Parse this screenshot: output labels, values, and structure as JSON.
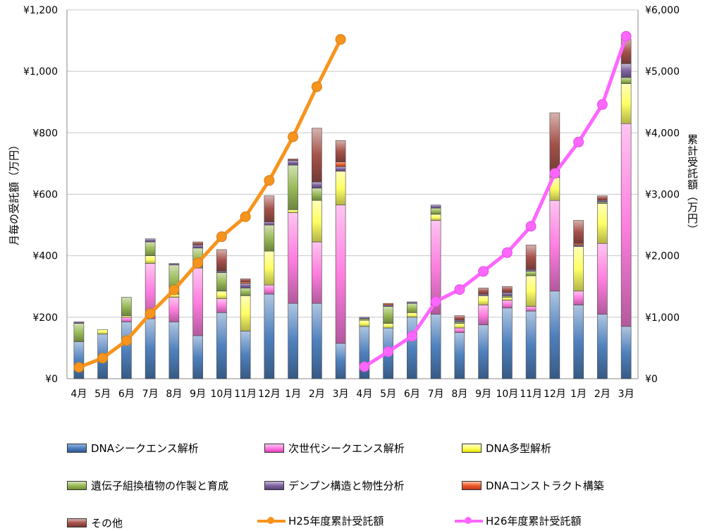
{
  "chart_data": {
    "type": "bar",
    "subtype": "stacked-bar-with-cumulative-lines",
    "categories": [
      "4月",
      "5月",
      "6月",
      "7月",
      "8月",
      "9月",
      "10月",
      "11月",
      "12月",
      "1月",
      "2月",
      "3月",
      "4月",
      "5月",
      "6月",
      "7月",
      "8月",
      "9月",
      "10月",
      "11月",
      "12月",
      "1月",
      "2月",
      "3月"
    ],
    "ylabel": "月毎の受託額（万円）",
    "y2label": "累計受託額（万円）",
    "ylim": [
      0,
      1200
    ],
    "y2lim": [
      0,
      6000
    ],
    "yticks": [
      "¥0",
      "¥200",
      "¥400",
      "¥600",
      "¥800",
      "¥1,000",
      "¥1,200"
    ],
    "y2ticks": [
      "¥0",
      "¥1,000",
      "¥2,000",
      "¥3,000",
      "¥4,000",
      "¥5,000",
      "¥6,000"
    ],
    "grid": true,
    "legend_position": "bottom",
    "series": [
      {
        "name": "DNAシークエンス解析",
        "color": "#4f81bd",
        "values": [
          120,
          145,
          185,
          195,
          185,
          140,
          215,
          155,
          275,
          245,
          245,
          115,
          170,
          165,
          200,
          210,
          150,
          175,
          230,
          220,
          285,
          240,
          210,
          170
        ]
      },
      {
        "name": "次世代シークエンス解析",
        "color": "#ff7fe0",
        "values": [
          0,
          0,
          15,
          180,
          80,
          220,
          45,
          0,
          30,
          295,
          200,
          450,
          0,
          0,
          0,
          305,
          15,
          65,
          25,
          15,
          295,
          45,
          230,
          660
        ]
      },
      {
        "name": "DNA多型解析",
        "color": "#ffff66",
        "values": [
          0,
          15,
          5,
          25,
          10,
          0,
          25,
          115,
          110,
          10,
          135,
          110,
          20,
          15,
          15,
          20,
          15,
          30,
          10,
          100,
          75,
          145,
          130,
          130
        ]
      },
      {
        "name": "遺伝子組換植物の作製と育成",
        "color": "#9bbb59",
        "values": [
          60,
          0,
          60,
          45,
          95,
          65,
          60,
          25,
          85,
          145,
          40,
          0,
          5,
          55,
          30,
          20,
          5,
          0,
          5,
          15,
          5,
          0,
          5,
          20
        ]
      },
      {
        "name": "デンプン構造と物性分析",
        "color": "#8064a2",
        "values": [
          5,
          0,
          0,
          10,
          5,
          10,
          5,
          15,
          10,
          15,
          20,
          15,
          5,
          5,
          5,
          10,
          5,
          5,
          10,
          5,
          5,
          5,
          5,
          45
        ]
      },
      {
        "name": "DNAコンストラクト構築",
        "color": "#f05a28",
        "values": [
          0,
          0,
          0,
          0,
          0,
          0,
          0,
          5,
          0,
          0,
          0,
          15,
          0,
          5,
          0,
          0,
          0,
          0,
          0,
          0,
          0,
          5,
          0,
          0
        ]
      },
      {
        "name": "その他",
        "color": "#a5534b",
        "values": [
          0,
          0,
          0,
          0,
          0,
          10,
          70,
          10,
          85,
          5,
          175,
          70,
          0,
          0,
          0,
          0,
          15,
          20,
          20,
          80,
          200,
          75,
          15,
          80
        ]
      }
    ],
    "lines": [
      {
        "name": "H25年度累計受託額",
        "color": "#f7941d",
        "axis": "right",
        "start_index": 0,
        "values": [
          185,
          335,
          620,
          1060,
          1445,
          1885,
          2310,
          2635,
          3225,
          3935,
          4750,
          5520
        ]
      },
      {
        "name": "H26年度累計受託額",
        "color": "#ff66ff",
        "axis": "right",
        "start_index": 12,
        "values": [
          195,
          440,
          690,
          1255,
          1450,
          1745,
          2050,
          2480,
          3340,
          3850,
          4460,
          5570
        ]
      }
    ]
  }
}
